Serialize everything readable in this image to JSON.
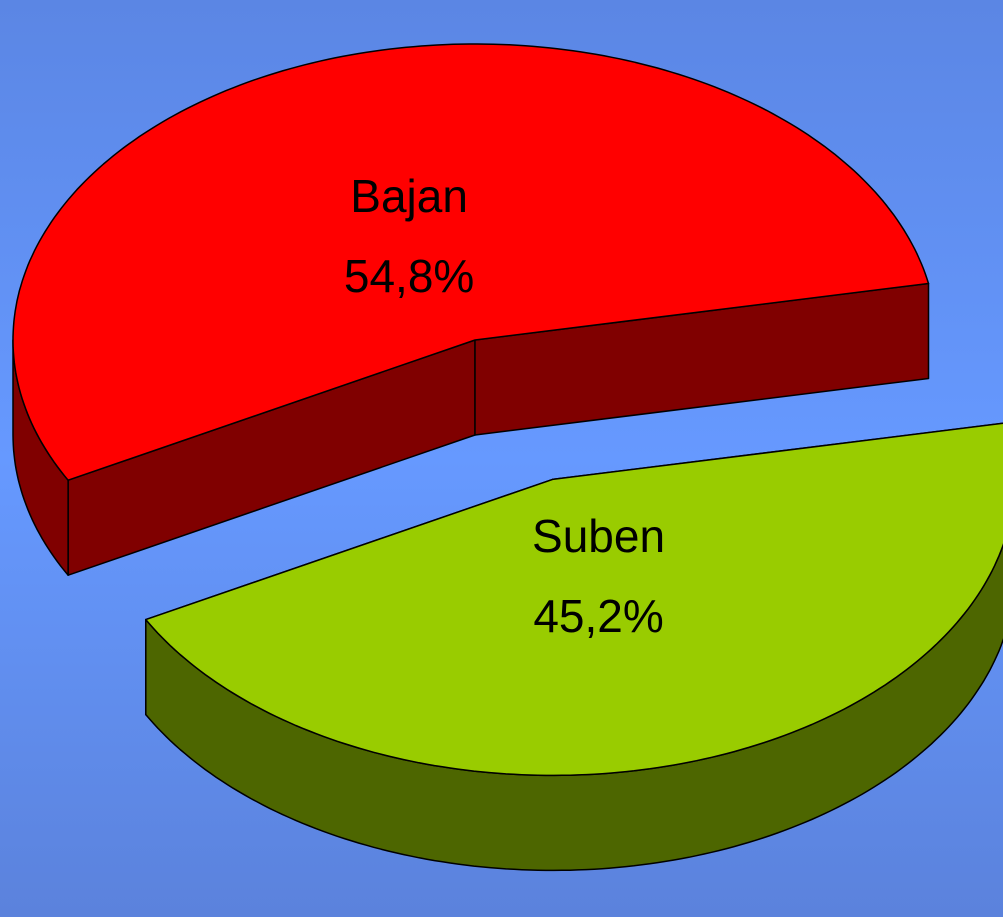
{
  "chart_data": {
    "type": "pie",
    "categories": [
      "Bajan",
      "Suben"
    ],
    "values": [
      54.8,
      45.2
    ],
    "value_labels": [
      "54,8%",
      "45,2%"
    ],
    "colors": [
      "#ff0000",
      "#99cc00"
    ]
  }
}
